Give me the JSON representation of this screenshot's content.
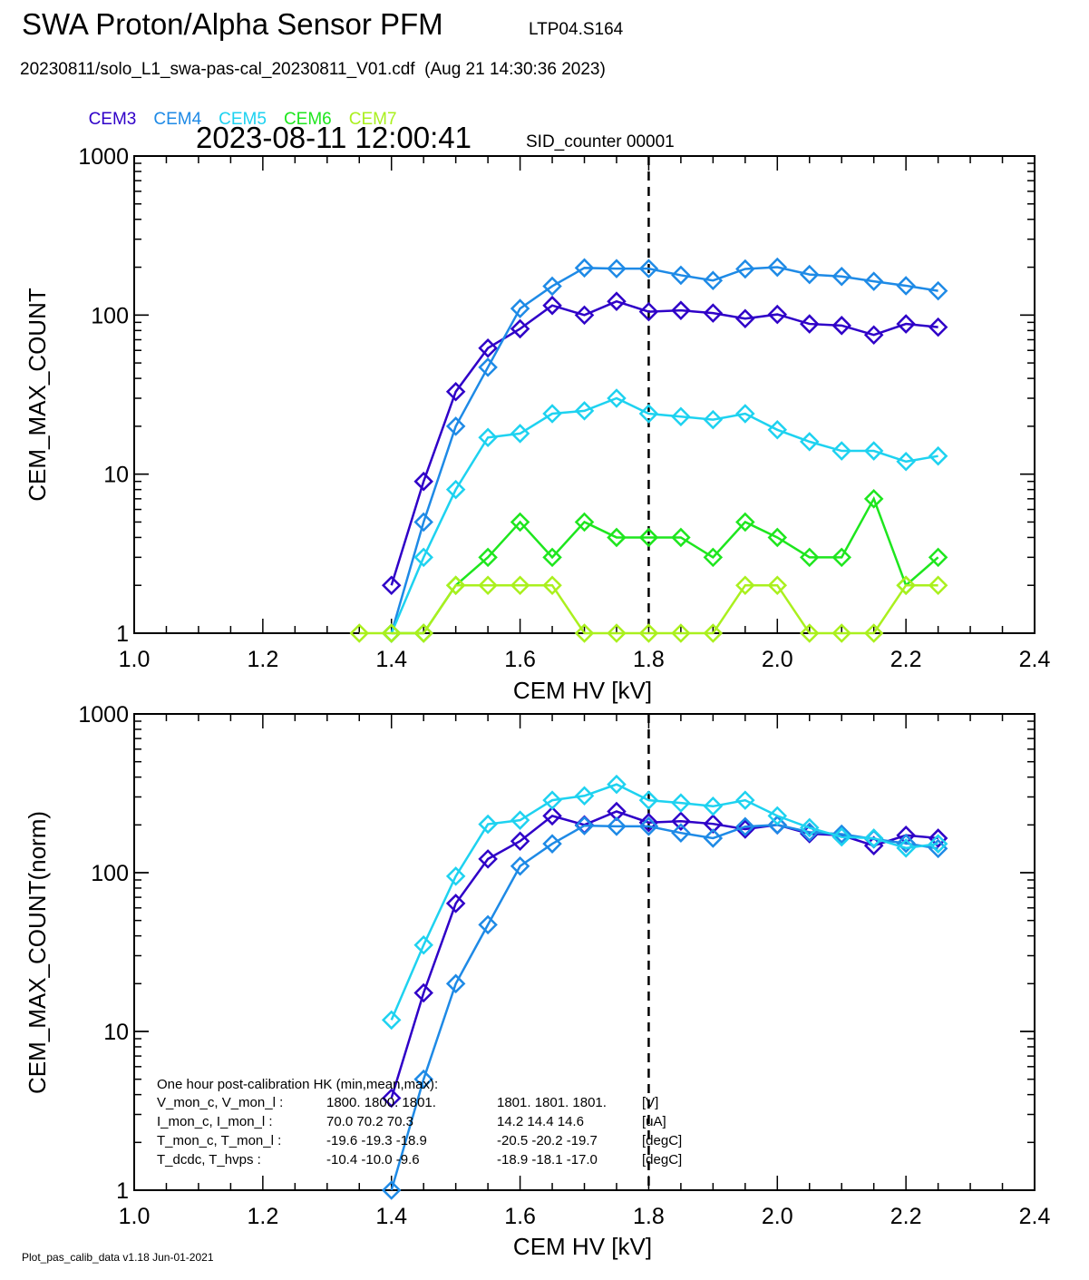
{
  "header": {
    "title": "SWA Proton/Alpha Sensor PFM",
    "run_id": "LTP04.S164",
    "file_line": "20230811/solo_L1_swa-pas-cal_20230811_V01.cdf  (Aug 21 14:30:36 2023)",
    "timestamp": "2023-08-11 12:00:41",
    "sid_counter": "SID_counter 00001"
  },
  "legend": [
    {
      "name": "CEM3",
      "color": "#2f00c8"
    },
    {
      "name": "CEM4",
      "color": "#1e8ae6"
    },
    {
      "name": "CEM5",
      "color": "#1ed2f0"
    },
    {
      "name": "CEM6",
      "color": "#1ee61e"
    },
    {
      "name": "CEM7",
      "color": "#aaf01e"
    }
  ],
  "footer": "Plot_pas_calib_data v1.18 Jun-01-2021",
  "hk_box": {
    "title": "One hour post-calibration HK (min,mean,max):",
    "rows": [
      {
        "label": "V_mon_c, V_mon_l :",
        "c": "1800.  1800.  1801.",
        "l": "1801.  1801.  1801.",
        "unit": "[V]"
      },
      {
        "label": "I_mon_c,  I_mon_l :",
        "c": "70.0   70.2   70.3",
        "l": "14.2   14.4   14.6",
        "unit": "[uA]"
      },
      {
        "label": "T_mon_c, T_mon_l :",
        "c": "-19.6  -19.3  -18.9",
        "l": "-20.5  -20.2  -19.7",
        "unit": "[degC]"
      },
      {
        "label": "T_dcdc,    T_hvps :",
        "c": "-10.4  -10.0   -9.6",
        "l": "-18.9  -18.1  -17.0",
        "unit": "[degC]"
      }
    ]
  },
  "chart_data": [
    {
      "type": "line",
      "xlabel": "CEM HV [kV]",
      "ylabel": "CEM_MAX_COUNT",
      "xlim": [
        1.0,
        2.4
      ],
      "ylim": [
        1,
        1000
      ],
      "yscale": "log",
      "xticks": [
        "1.0",
        "1.2",
        "1.4",
        "1.6",
        "1.8",
        "2.0",
        "2.2",
        "2.4"
      ],
      "yticks": [
        "1",
        "10",
        "100",
        "1000"
      ],
      "marker": "diamond",
      "vline_x": 1.8,
      "x": [
        1.35,
        1.4,
        1.45,
        1.5,
        1.55,
        1.6,
        1.65,
        1.7,
        1.75,
        1.8,
        1.85,
        1.9,
        1.95,
        2.0,
        2.05,
        2.1,
        2.15,
        2.2,
        2.25
      ],
      "series": [
        {
          "name": "CEM3",
          "color": "#2f00c8",
          "values": [
            null,
            2,
            9,
            33,
            62,
            82,
            115,
            100,
            122,
            105,
            107,
            103,
            95,
            101,
            88,
            86,
            75,
            88,
            84
          ]
        },
        {
          "name": "CEM4",
          "color": "#1e8ae6",
          "values": [
            null,
            1,
            5,
            20,
            47,
            110,
            152,
            198,
            196,
            196,
            178,
            165,
            195,
            200,
            180,
            175,
            163,
            153,
            142
          ]
        },
        {
          "name": "CEM5",
          "color": "#1ed2f0",
          "values": [
            null,
            1,
            3,
            8,
            17,
            18,
            24,
            25,
            30,
            24,
            23,
            22,
            24,
            19,
            16,
            14,
            14,
            12,
            13
          ]
        },
        {
          "name": "CEM6",
          "color": "#1ee61e",
          "values": [
            null,
            1,
            1,
            2,
            3,
            5,
            3,
            5,
            4,
            4,
            4,
            3,
            5,
            4,
            3,
            3,
            7,
            2,
            3
          ]
        },
        {
          "name": "CEM7",
          "color": "#aaf01e",
          "values": [
            1,
            1,
            1,
            2,
            2,
            2,
            2,
            1,
            1,
            1,
            1,
            1,
            2,
            2,
            1,
            1,
            1,
            2,
            2
          ]
        }
      ]
    },
    {
      "type": "line",
      "xlabel": "CEM HV [kV]",
      "ylabel": "CEM_MAX_COUNT(norm)",
      "xlim": [
        1.0,
        2.4
      ],
      "ylim": [
        1,
        1000
      ],
      "yscale": "log",
      "xticks": [
        "1.0",
        "1.2",
        "1.4",
        "1.6",
        "1.8",
        "2.0",
        "2.2",
        "2.4"
      ],
      "yticks": [
        "1",
        "10",
        "100",
        "1000"
      ],
      "marker": "diamond",
      "vline_x": 1.8,
      "x": [
        1.35,
        1.4,
        1.45,
        1.5,
        1.55,
        1.6,
        1.65,
        1.7,
        1.75,
        1.8,
        1.85,
        1.9,
        1.95,
        2.0,
        2.05,
        2.1,
        2.15,
        2.2,
        2.25
      ],
      "series": [
        {
          "name": "CEM3",
          "color": "#2f00c8",
          "values": [
            null,
            3.8,
            17.5,
            64,
            122,
            158,
            228,
            200,
            243,
            207,
            211,
            203,
            188,
            200,
            176,
            172,
            148,
            172,
            165
          ]
        },
        {
          "name": "CEM4",
          "color": "#1e8ae6",
          "values": [
            null,
            1,
            5,
            20,
            47,
            110,
            152,
            198,
            196,
            196,
            178,
            165,
            195,
            200,
            180,
            175,
            163,
            153,
            142
          ]
        },
        {
          "name": "CEM5",
          "color": "#1ed2f0",
          "values": [
            null,
            11.8,
            35,
            95,
            202,
            214,
            286,
            305,
            360,
            286,
            275,
            262,
            286,
            228,
            192,
            168,
            165,
            143,
            152
          ]
        }
      ]
    }
  ]
}
